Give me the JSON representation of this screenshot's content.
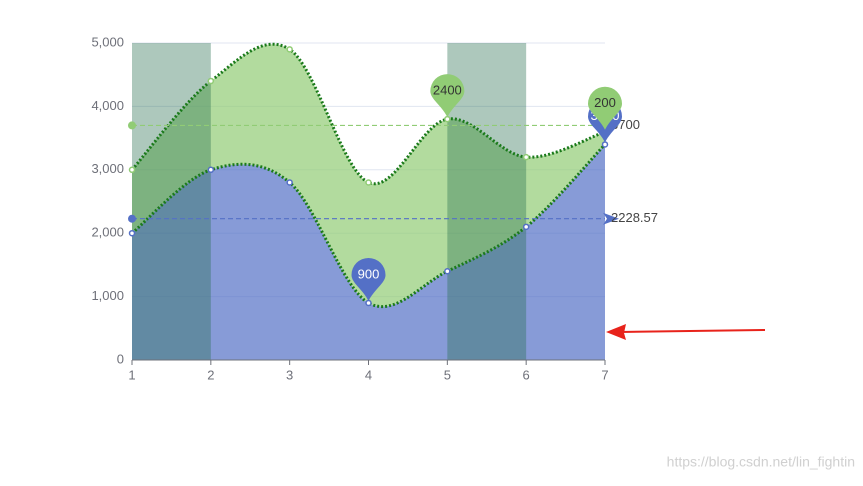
{
  "chart_data": {
    "type": "area",
    "xlim": [
      1,
      7
    ],
    "xticks": [
      1,
      2,
      3,
      4,
      5,
      6,
      7
    ],
    "ylim": [
      0,
      5000
    ],
    "yticks": [
      0,
      {
        "value": 1000,
        "label": "1,000"
      },
      {
        "value": 2000,
        "label": "2,000"
      },
      {
        "value": 3000,
        "label": "3,000"
      },
      {
        "value": 4000,
        "label": "4,000"
      },
      {
        "value": 5000,
        "label": "5,000"
      }
    ],
    "stacked": true,
    "smooth": true,
    "mark_areas": [
      [
        1,
        2
      ],
      [
        5,
        6
      ]
    ],
    "series": [
      {
        "color": "#5470c6",
        "values": [
          2000,
          3000,
          2800,
          900,
          1400,
          2100,
          3400
        ],
        "average": 2228.57
      },
      {
        "color": "#91cc75",
        "values": [
          1000,
          1400,
          2100,
          1900,
          2400,
          1100,
          200
        ],
        "average": 3700
      }
    ],
    "watermark": "https://blog.csdn.net/lin_fightin"
  }
}
